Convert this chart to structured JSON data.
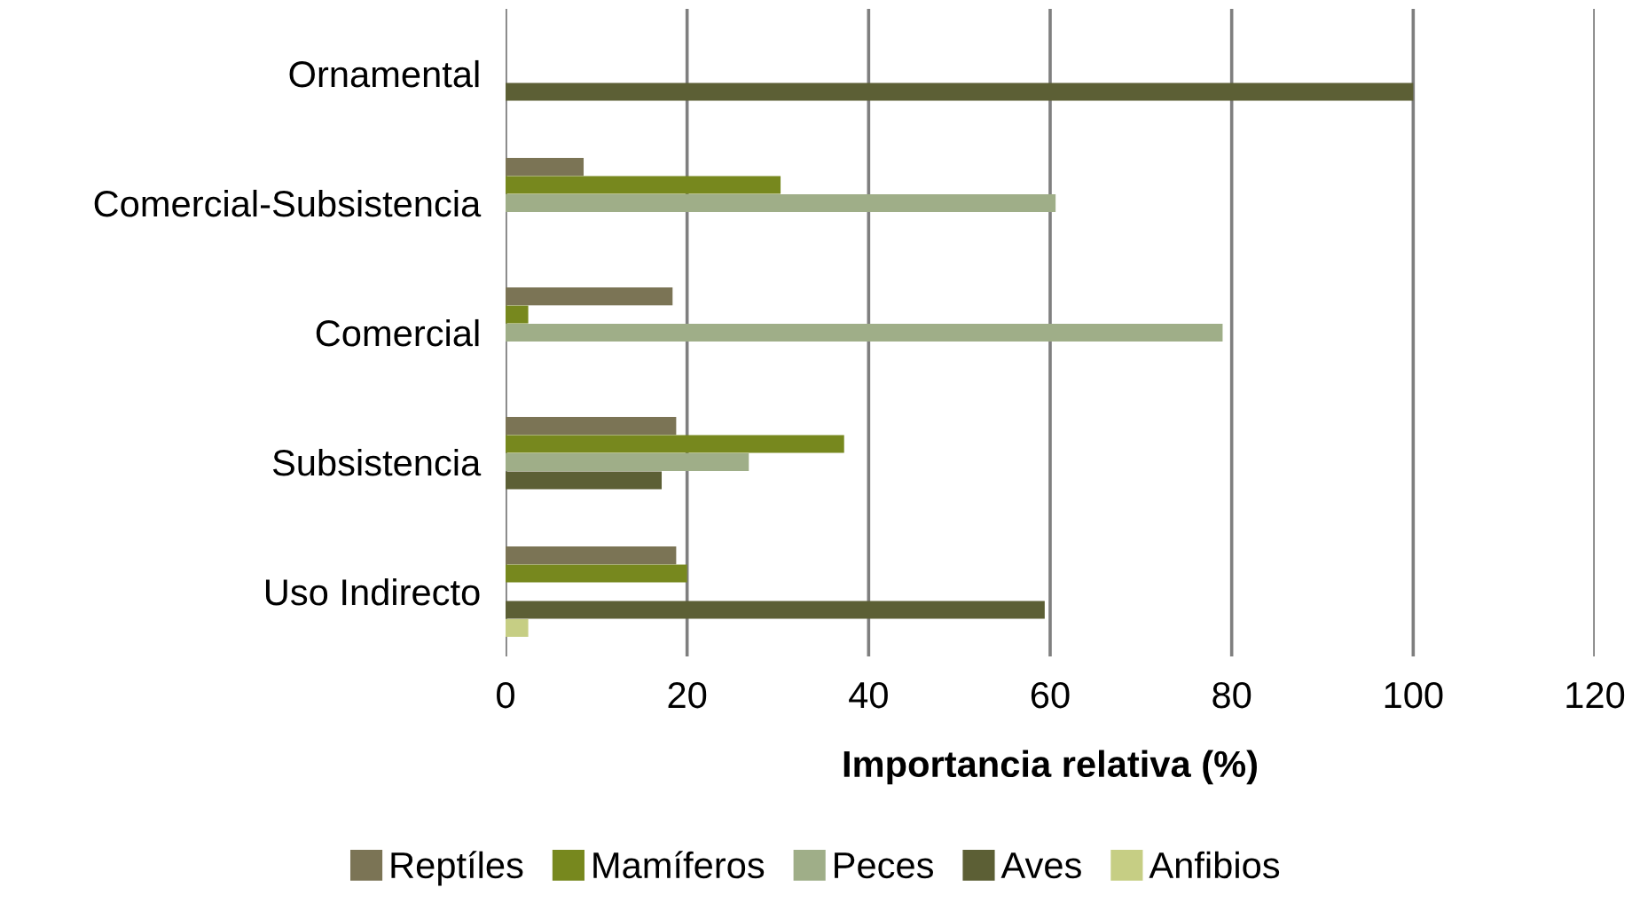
{
  "chart_data": {
    "type": "bar",
    "orientation": "horizontal",
    "xlabel": "Importancia relativa (%)",
    "categories": [
      "Ornamental",
      "Comercial-Subsistencia",
      "Comercial",
      "Subsistencia",
      "Uso Indirecto"
    ],
    "series": [
      {
        "name": "Reptíles",
        "color": "#7b7455",
        "values": [
          null,
          8.6,
          18.4,
          18.8,
          18.8
        ]
      },
      {
        "name": "Mamíferos",
        "color": "#77881e",
        "values": [
          null,
          30.3,
          2.5,
          37.3,
          20.0
        ]
      },
      {
        "name": "Peces",
        "color": "#9fae88",
        "values": [
          null,
          60.6,
          79.0,
          26.8,
          null
        ]
      },
      {
        "name": "Aves",
        "color": "#5c5f35",
        "values": [
          100,
          null,
          null,
          17.2,
          59.4
        ]
      },
      {
        "name": "Anfibios",
        "color": "#c6ce84",
        "values": [
          null,
          null,
          null,
          null,
          2.5
        ]
      }
    ],
    "xlim": [
      0,
      120
    ],
    "xticks": [
      0,
      20,
      40,
      60,
      80,
      100,
      120
    ],
    "grid": "x",
    "legend": "bottom"
  }
}
